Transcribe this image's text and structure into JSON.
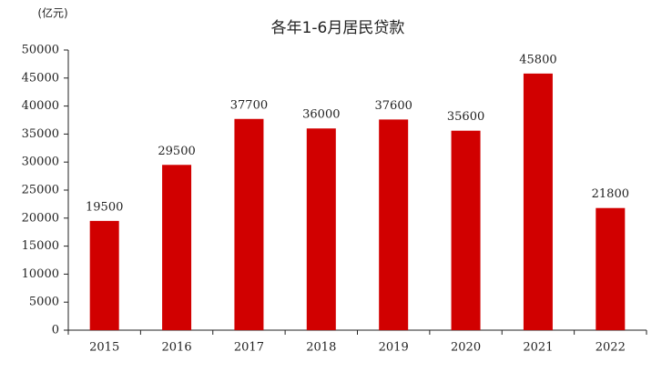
{
  "chart_data": {
    "type": "bar",
    "title": "各年1-6月居民贷款",
    "ylabel": "(亿元)",
    "categories": [
      "2015",
      "2016",
      "2017",
      "2018",
      "2019",
      "2020",
      "2021",
      "2022"
    ],
    "values": [
      19500,
      29500,
      37700,
      36000,
      37600,
      35600,
      45800,
      21800
    ],
    "color": "#d10000",
    "ylim": [
      0,
      50000
    ],
    "yticks": [
      0,
      5000,
      10000,
      15000,
      20000,
      25000,
      30000,
      35000,
      40000,
      45000,
      50000
    ]
  }
}
